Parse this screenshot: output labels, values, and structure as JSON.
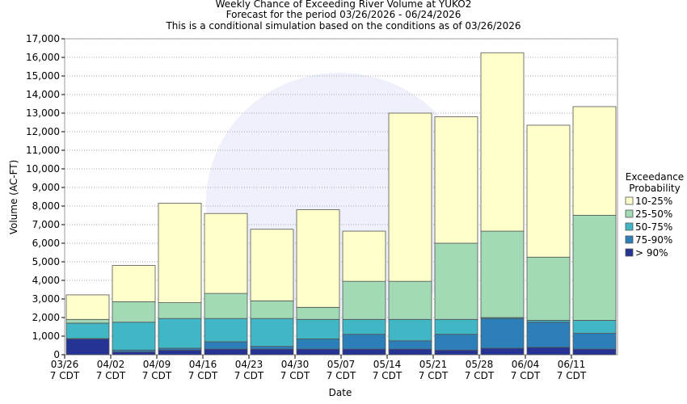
{
  "chart_data": {
    "type": "stacked_bar",
    "title": "Weekly Chance of Exceeding River Volume at YUKO2",
    "subtitle": "Forecast for the period 03/26/2026 - 06/24/2026",
    "note": "This is a conditional simulation based on the conditions as of 03/26/2026",
    "y_label": "Volume (AC-FT)",
    "x_label": "Date",
    "categories": [
      "03/26",
      "04/02",
      "04/09",
      "04/16",
      "04/23",
      "04/30",
      "05/07",
      "05/14",
      "05/21",
      "05/28",
      "06/04",
      "06/11"
    ],
    "x_tick_sublabel": "7 CDT",
    "legend_title": "Exceedance Probability",
    "series": [
      {
        "name": "10-25%",
        "color": "#ffffcc",
        "values": [
          1320,
          1950,
          5350,
          4300,
          3850,
          5250,
          2700,
          9050,
          6800,
          9600,
          7100,
          5850
        ]
      },
      {
        "name": "25-50%",
        "color": "#a1dab4",
        "values": [
          200,
          1100,
          850,
          1350,
          950,
          650,
          2050,
          2050,
          4100,
          4650,
          3400,
          5650
        ]
      },
      {
        "name": "50-75%",
        "color": "#41b6c4",
        "values": [
          830,
          1500,
          1600,
          1250,
          1500,
          1050,
          800,
          1150,
          800,
          50,
          100,
          700
        ]
      },
      {
        "name": "75-90%",
        "color": "#2c7fb8",
        "values": [
          20,
          100,
          100,
          400,
          150,
          550,
          800,
          450,
          850,
          1600,
          1350,
          850
        ]
      },
      {
        "name": "> 90%",
        "color": "#253494",
        "values": [
          850,
          150,
          250,
          300,
          300,
          300,
          300,
          300,
          250,
          350,
          400,
          300
        ]
      }
    ],
    "ylim": [
      0,
      17000
    ],
    "yticks": [
      0,
      {
        "value": 1000,
        "label": "1,000"
      },
      {
        "value": 2000,
        "label": "2,000"
      },
      {
        "value": 3000,
        "label": "3,000"
      },
      {
        "value": 4000,
        "label": "4,000"
      },
      {
        "value": 5000,
        "label": "5,000"
      },
      {
        "value": 6000,
        "label": "6,000"
      },
      {
        "value": 7000,
        "label": "7,000"
      },
      {
        "value": 8000,
        "label": "8,000"
      },
      {
        "value": 9000,
        "label": "9,000"
      },
      {
        "value": 10000,
        "label": "10,000"
      },
      {
        "value": 11000,
        "label": "11,000"
      },
      {
        "value": 12000,
        "label": "12,000"
      },
      {
        "value": 13000,
        "label": "13,000"
      },
      {
        "value": 14000,
        "label": "14,000"
      },
      {
        "value": 15000,
        "label": "15,000"
      },
      {
        "value": 16000,
        "label": "16,000"
      },
      {
        "value": 17000,
        "label": "17,000"
      }
    ],
    "grid": true
  }
}
